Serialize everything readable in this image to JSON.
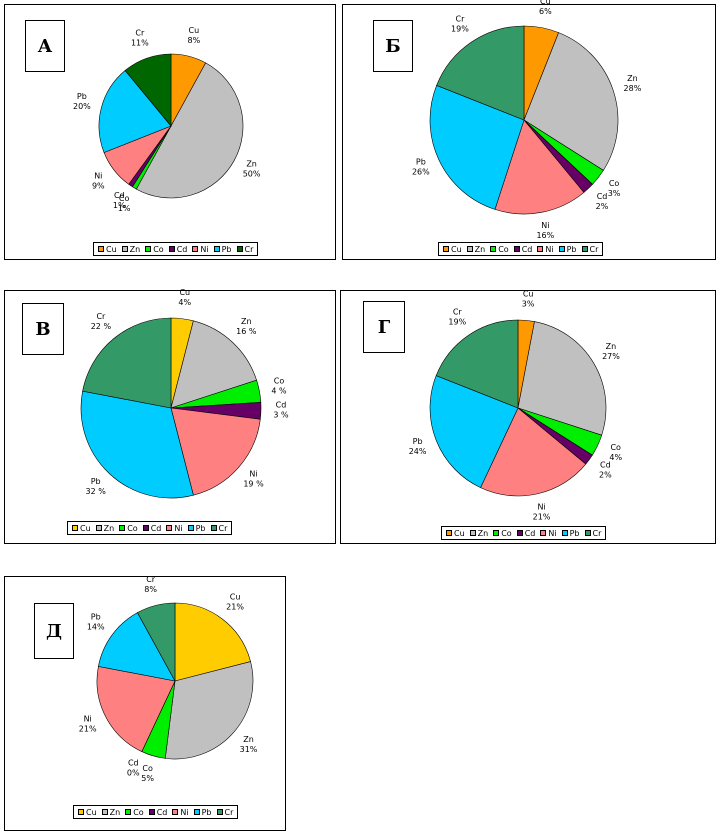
{
  "colors": {
    "Cu": "#ff9900",
    "Zn": "#c0c0c0",
    "Co": "#00ee00",
    "Cd": "#660066",
    "Ni": "#ff8080",
    "Pb": "#00ccff",
    "Cr": "#339966",
    "Cu_yellow": "#ffcc00"
  },
  "chart_data": [
    {
      "type": "pie",
      "panel_letter": "А",
      "series": [
        {
          "name": "Cu",
          "value": 8,
          "label": "Cu\n8%",
          "color": "#ff9900"
        },
        {
          "name": "Zn",
          "value": 50,
          "label": "Zn\n50%",
          "color": "#c0c0c0"
        },
        {
          "name": "Co",
          "value": 1,
          "label": "Co\n1%",
          "color": "#00ee00"
        },
        {
          "name": "Cd",
          "value": 1,
          "label": "Cd\n1%",
          "color": "#660066"
        },
        {
          "name": "Ni",
          "value": 9,
          "label": "Ni\n9%",
          "color": "#ff8080"
        },
        {
          "name": "Pb",
          "value": 20,
          "label": "Pb\n20%",
          "color": "#00ccff"
        },
        {
          "name": "Cr",
          "value": 11,
          "label": "Cr\n11%",
          "color": "#006600"
        }
      ],
      "legend": [
        "Cu",
        "Zn",
        "Co",
        "Cd",
        "Ni",
        "Pb",
        "Cr"
      ]
    },
    {
      "type": "pie",
      "panel_letter": "Б",
      "series": [
        {
          "name": "Cu",
          "value": 6,
          "label": "Cu\n6%",
          "color": "#ff9900"
        },
        {
          "name": "Zn",
          "value": 28,
          "label": "Zn\n28%",
          "color": "#c0c0c0"
        },
        {
          "name": "Co",
          "value": 3,
          "label": "Co\n3%",
          "color": "#00ee00"
        },
        {
          "name": "Cd",
          "value": 2,
          "label": "Cd\n2%",
          "color": "#660066"
        },
        {
          "name": "Ni",
          "value": 16,
          "label": "Ni\n16%",
          "color": "#ff8080"
        },
        {
          "name": "Pb",
          "value": 26,
          "label": "Pb\n26%",
          "color": "#00ccff"
        },
        {
          "name": "Cr",
          "value": 19,
          "label": "Cr\n19%",
          "color": "#339966"
        }
      ],
      "legend": [
        "Cu",
        "Zn",
        "Co",
        "Cd",
        "Ni",
        "Pb",
        "Cr"
      ]
    },
    {
      "type": "pie",
      "panel_letter": "В",
      "series": [
        {
          "name": "Cu",
          "value": 4,
          "label": "Cu\n4%",
          "color": "#ffcc00"
        },
        {
          "name": "Zn",
          "value": 16,
          "label": "Zn\n16 %",
          "color": "#c0c0c0"
        },
        {
          "name": "Co",
          "value": 4,
          "label": "Co\n4 %",
          "color": "#00ee00"
        },
        {
          "name": "Cd",
          "value": 3,
          "label": "Cd\n3 %",
          "color": "#660066"
        },
        {
          "name": "Ni",
          "value": 19,
          "label": "Ni\n19 %",
          "color": "#ff8080"
        },
        {
          "name": "Pb",
          "value": 32,
          "label": "Pb\n32 %",
          "color": "#00ccff"
        },
        {
          "name": "Cr",
          "value": 22,
          "label": "Cr\n22 %",
          "color": "#339966"
        }
      ],
      "legend": [
        "Cu",
        "Zn",
        "Co",
        "Cd",
        "Ni",
        "Pb",
        "Cr"
      ]
    },
    {
      "type": "pie",
      "panel_letter": "Г",
      "series": [
        {
          "name": "Cu",
          "value": 3,
          "label": "Cu\n3%",
          "color": "#ff9900"
        },
        {
          "name": "Zn",
          "value": 27,
          "label": "Zn\n27%",
          "color": "#c0c0c0"
        },
        {
          "name": "Co",
          "value": 4,
          "label": "Co\n4%",
          "color": "#00ee00"
        },
        {
          "name": "Cd",
          "value": 2,
          "label": "Cd\n2%",
          "color": "#660066"
        },
        {
          "name": "Ni",
          "value": 21,
          "label": "Ni\n21%",
          "color": "#ff8080"
        },
        {
          "name": "Pb",
          "value": 24,
          "label": "Pb\n24%",
          "color": "#00ccff"
        },
        {
          "name": "Cr",
          "value": 19,
          "label": "Cr\n19%",
          "color": "#339966"
        }
      ],
      "legend": [
        "Cu",
        "Zn",
        "Co",
        "Cd",
        "Ni",
        "Pb",
        "Cr"
      ]
    },
    {
      "type": "pie",
      "panel_letter": "Д",
      "series": [
        {
          "name": "Cu",
          "value": 21,
          "label": "Cu\n21%",
          "color": "#ffcc00"
        },
        {
          "name": "Zn",
          "value": 31,
          "label": "Zn\n31%",
          "color": "#c0c0c0"
        },
        {
          "name": "Co",
          "value": 5,
          "label": "Co\n5%",
          "color": "#00ee00"
        },
        {
          "name": "Cd",
          "value": 0,
          "label": "Cd\n0%",
          "color": "#660066"
        },
        {
          "name": "Ni",
          "value": 21,
          "label": "Ni\n21%",
          "color": "#ff8080"
        },
        {
          "name": "Pb",
          "value": 14,
          "label": "Pb\n14%",
          "color": "#00ccff"
        },
        {
          "name": "Cr",
          "value": 8,
          "label": "Cr\n8%",
          "color": "#339966"
        }
      ],
      "legend": [
        "Cu",
        "Zn",
        "Co",
        "Cd",
        "Ni",
        "Pb",
        "Cr"
      ]
    }
  ]
}
